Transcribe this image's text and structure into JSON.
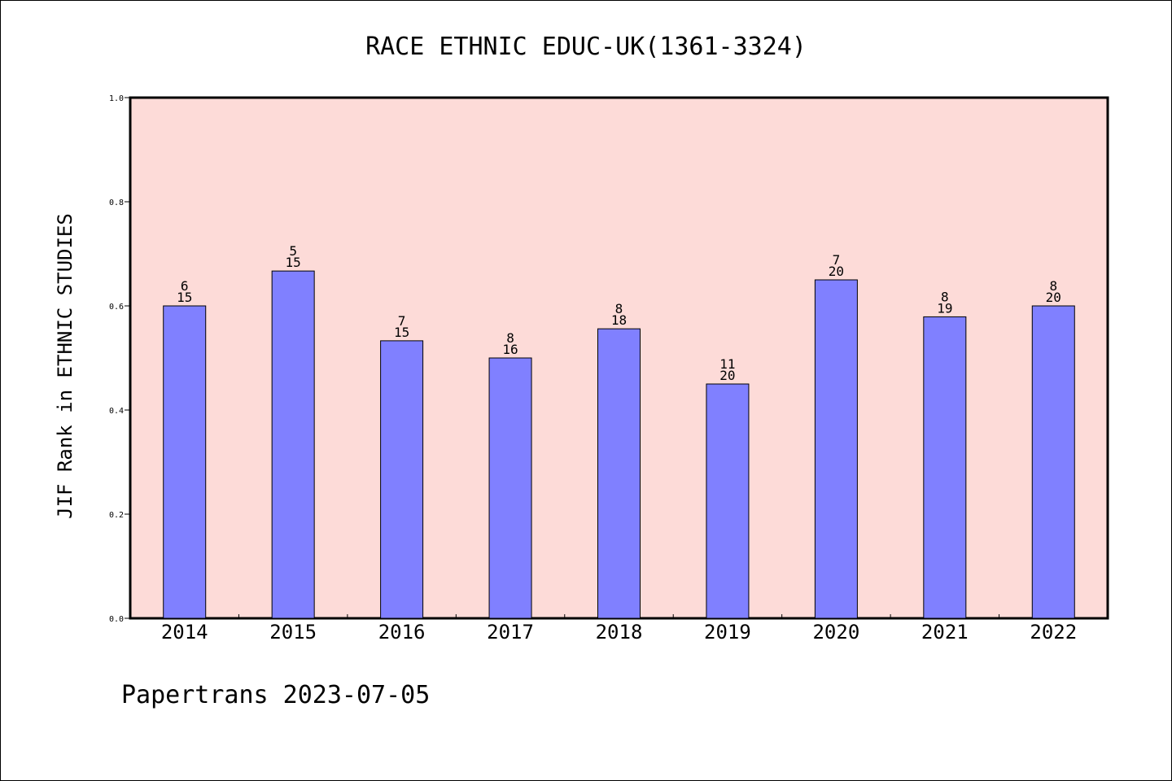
{
  "chart_data": {
    "type": "bar",
    "title": "RACE ETHNIC EDUC-UK(1361-3324)",
    "ylabel": "JIF Rank in ETHNIC STUDIES",
    "xlabel": "",
    "ylim": [
      0,
      1.0
    ],
    "yticks": [
      "0.0",
      "0.2",
      "0.4",
      "0.6",
      "0.8",
      "1.0"
    ],
    "categories": [
      "2014",
      "2015",
      "2016",
      "2017",
      "2018",
      "2019",
      "2020",
      "2021",
      "2022"
    ],
    "values": [
      0.6,
      0.667,
      0.533,
      0.5,
      0.556,
      0.45,
      0.65,
      0.579,
      0.6
    ],
    "rank": [
      "6",
      "5",
      "7",
      "8",
      "8",
      "11",
      "7",
      "8",
      "8"
    ],
    "total": [
      "15",
      "15",
      "15",
      "16",
      "18",
      "20",
      "20",
      "19",
      "20"
    ],
    "grid": false,
    "colors": {
      "plot_bg": "#fddbd8",
      "bar": "#8080ff",
      "bar_edge": "#000000"
    }
  },
  "footer": "Papertrans 2023-07-05"
}
